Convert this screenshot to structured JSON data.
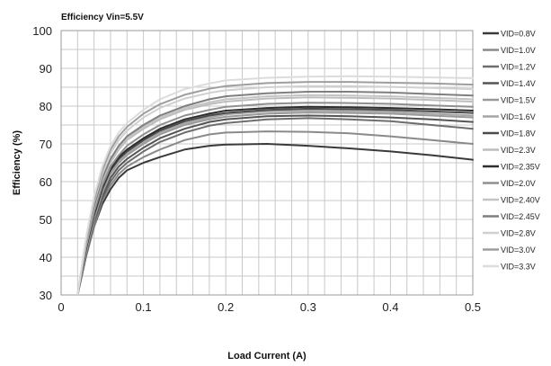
{
  "chart_data": {
    "type": "line",
    "title": "Efficiency Vin=5.5V",
    "xlabel": "Load Current (A)",
    "ylabel": "Efficiency (%)",
    "xlim": [
      0,
      0.5
    ],
    "ylim": [
      30,
      100
    ],
    "xticks": [
      0,
      0.1,
      0.2,
      0.3,
      0.4,
      0.5
    ],
    "xtick_labels": [
      "0",
      "0.1",
      "0.2",
      "0.3",
      "0.4",
      "0.5"
    ],
    "yticks": [
      30,
      40,
      50,
      60,
      70,
      80,
      90,
      100
    ],
    "ytick_labels": [
      "30",
      "40",
      "50",
      "60",
      "70",
      "80",
      "90",
      "100"
    ],
    "grid": true,
    "legend_position": "right",
    "series": [
      {
        "name": "VID=0.8V",
        "color": "#3a3a3a",
        "x": [
          0.02,
          0.03,
          0.04,
          0.05,
          0.06,
          0.07,
          0.08,
          0.1,
          0.12,
          0.15,
          0.18,
          0.2,
          0.25,
          0.3,
          0.35,
          0.4,
          0.45,
          0.5
        ],
        "y": [
          30,
          40,
          48,
          54,
          58,
          61,
          63,
          65,
          66.5,
          68.5,
          69.5,
          69.8,
          70,
          69.5,
          68.8,
          68,
          67,
          65.8
        ]
      },
      {
        "name": "VID=1.0V",
        "color": "#8a8a8a",
        "x": [
          0.02,
          0.03,
          0.04,
          0.05,
          0.06,
          0.07,
          0.08,
          0.1,
          0.12,
          0.15,
          0.18,
          0.2,
          0.25,
          0.3,
          0.35,
          0.4,
          0.45,
          0.5
        ],
        "y": [
          30,
          40,
          48,
          55,
          59,
          62,
          64,
          66.5,
          68.5,
          71,
          72.5,
          73,
          73.3,
          73.2,
          72.8,
          72,
          71,
          70
        ]
      },
      {
        "name": "VID=1.2V",
        "color": "#6e6e6e",
        "x": [
          0.02,
          0.03,
          0.04,
          0.05,
          0.06,
          0.07,
          0.08,
          0.1,
          0.12,
          0.15,
          0.18,
          0.2,
          0.25,
          0.3,
          0.35,
          0.4,
          0.45,
          0.5
        ],
        "y": [
          30,
          40,
          49,
          55.5,
          60,
          63,
          65,
          68,
          70.5,
          73,
          74.8,
          75.5,
          76.5,
          76.8,
          76.5,
          76,
          75,
          74
        ]
      },
      {
        "name": "VID=1.4V",
        "color": "#555555",
        "x": [
          0.02,
          0.03,
          0.04,
          0.05,
          0.06,
          0.07,
          0.08,
          0.1,
          0.12,
          0.15,
          0.18,
          0.2,
          0.25,
          0.3,
          0.35,
          0.4,
          0.45,
          0.5
        ],
        "y": [
          30,
          41,
          49.5,
          56,
          61,
          64,
          66,
          69,
          71.5,
          74,
          75.8,
          76.5,
          77.3,
          77.5,
          77.3,
          77,
          76.5,
          75.8
        ]
      },
      {
        "name": "VID=1.5V",
        "color": "#999999",
        "x": [
          0.02,
          0.03,
          0.04,
          0.05,
          0.06,
          0.07,
          0.08,
          0.1,
          0.12,
          0.15,
          0.18,
          0.2,
          0.25,
          0.3,
          0.35,
          0.4,
          0.45,
          0.5
        ],
        "y": [
          30,
          41,
          50,
          57,
          62,
          65,
          67,
          70,
          72.5,
          75,
          76.5,
          77.2,
          78,
          78.3,
          78.2,
          78,
          77.5,
          77
        ]
      },
      {
        "name": "VID=1.6V",
        "color": "#a5a5a5",
        "x": [
          0.02,
          0.03,
          0.04,
          0.05,
          0.06,
          0.07,
          0.08,
          0.1,
          0.12,
          0.15,
          0.18,
          0.2,
          0.25,
          0.3,
          0.35,
          0.4,
          0.45,
          0.5
        ],
        "y": [
          30,
          41.5,
          50.5,
          57.5,
          62.5,
          65.5,
          67.5,
          70.5,
          73,
          75.5,
          77,
          77.8,
          78.6,
          78.8,
          78.7,
          78.5,
          78,
          77.5
        ]
      },
      {
        "name": "VID=1.8V",
        "color": "#4a4a4a",
        "x": [
          0.02,
          0.03,
          0.04,
          0.05,
          0.06,
          0.07,
          0.08,
          0.1,
          0.12,
          0.15,
          0.18,
          0.2,
          0.25,
          0.3,
          0.35,
          0.4,
          0.45,
          0.5
        ],
        "y": [
          30,
          42,
          51,
          58,
          63,
          66,
          68,
          71,
          73.5,
          76,
          77.5,
          78.2,
          79,
          79.3,
          79.2,
          79,
          78.6,
          78.2
        ]
      },
      {
        "name": "VID=2.3V",
        "color": "#bdbdbd",
        "x": [
          0.02,
          0.03,
          0.04,
          0.05,
          0.06,
          0.07,
          0.08,
          0.1,
          0.12,
          0.15,
          0.18,
          0.2,
          0.25,
          0.3,
          0.35,
          0.4,
          0.45,
          0.5
        ],
        "y": [
          30,
          43,
          53,
          60,
          65,
          68.5,
          71,
          74,
          76.5,
          79,
          80.5,
          81.2,
          82,
          82.3,
          82.2,
          82,
          81.6,
          81.2
        ]
      },
      {
        "name": "VID=2.35V",
        "color": "#2e2e2e",
        "x": [
          0.02,
          0.03,
          0.04,
          0.05,
          0.06,
          0.07,
          0.08,
          0.1,
          0.12,
          0.15,
          0.18,
          0.2,
          0.25,
          0.3,
          0.35,
          0.4,
          0.45,
          0.5
        ],
        "y": [
          30,
          42,
          51.5,
          58.5,
          63.5,
          66.5,
          68.5,
          71.5,
          74,
          76.5,
          78,
          78.8,
          79.5,
          79.8,
          79.7,
          79.5,
          79.2,
          78.8
        ]
      },
      {
        "name": "VID=2.0V",
        "color": "#8f8f8f",
        "x": [
          0.02,
          0.03,
          0.04,
          0.05,
          0.06,
          0.07,
          0.08,
          0.1,
          0.12,
          0.15,
          0.18,
          0.2,
          0.25,
          0.3,
          0.35,
          0.4,
          0.45,
          0.5
        ],
        "y": [
          30,
          42.5,
          52,
          59,
          64,
          67,
          69.5,
          72.5,
          75,
          77.5,
          79,
          79.8,
          80.6,
          80.9,
          80.8,
          80.6,
          80.2,
          79.8
        ]
      },
      {
        "name": "VID=2.40V",
        "color": "#c4c4c4",
        "x": [
          0.02,
          0.03,
          0.04,
          0.05,
          0.06,
          0.07,
          0.08,
          0.1,
          0.12,
          0.15,
          0.18,
          0.2,
          0.25,
          0.3,
          0.35,
          0.4,
          0.45,
          0.5
        ],
        "y": [
          30,
          43,
          53,
          60.5,
          65.5,
          69,
          71.5,
          74.5,
          77,
          79.5,
          81,
          81.8,
          82.6,
          82.9,
          82.8,
          82.6,
          82.2,
          81.8
        ]
      },
      {
        "name": "VID=2.45V",
        "color": "#7f7f7f",
        "x": [
          0.02,
          0.03,
          0.04,
          0.05,
          0.06,
          0.07,
          0.08,
          0.1,
          0.12,
          0.15,
          0.18,
          0.2,
          0.25,
          0.3,
          0.35,
          0.4,
          0.45,
          0.5
        ],
        "y": [
          30,
          43.5,
          53.5,
          61,
          66,
          69.5,
          72,
          75,
          77.5,
          80,
          81.8,
          82.6,
          83.4,
          83.8,
          83.8,
          83.6,
          83.2,
          82.8
        ]
      },
      {
        "name": "VID=2.8V",
        "color": "#d0d0d0",
        "x": [
          0.02,
          0.03,
          0.04,
          0.05,
          0.06,
          0.07,
          0.08,
          0.1,
          0.12,
          0.15,
          0.18,
          0.2,
          0.25,
          0.3,
          0.35,
          0.4,
          0.45,
          0.5
        ],
        "y": [
          30,
          44,
          54.5,
          62,
          67.5,
          71,
          73.5,
          77,
          79.5,
          82,
          83.5,
          84.2,
          85,
          85.3,
          85.3,
          85.1,
          84.8,
          84.5
        ]
      },
      {
        "name": "VID=3.0V",
        "color": "#9e9e9e",
        "x": [
          0.02,
          0.03,
          0.04,
          0.05,
          0.06,
          0.07,
          0.08,
          0.1,
          0.12,
          0.15,
          0.18,
          0.2,
          0.25,
          0.3,
          0.35,
          0.4,
          0.45,
          0.5
        ],
        "y": [
          30,
          44.5,
          55,
          63,
          68.5,
          72,
          74.5,
          78,
          80.5,
          83,
          84.6,
          85.3,
          86.1,
          86.4,
          86.4,
          86.2,
          86,
          85.7
        ]
      },
      {
        "name": "VID=3.3V",
        "color": "#dcdcdc",
        "x": [
          0.02,
          0.03,
          0.04,
          0.05,
          0.06,
          0.07,
          0.08,
          0.1,
          0.12,
          0.15,
          0.18,
          0.2,
          0.25,
          0.3,
          0.35,
          0.4,
          0.45,
          0.5
        ],
        "y": [
          30,
          45,
          56,
          64,
          69.5,
          73,
          75.5,
          79,
          81.8,
          84.5,
          86,
          86.8,
          87.5,
          87.8,
          87.9,
          87.8,
          87.6,
          87.4
        ]
      }
    ]
  }
}
